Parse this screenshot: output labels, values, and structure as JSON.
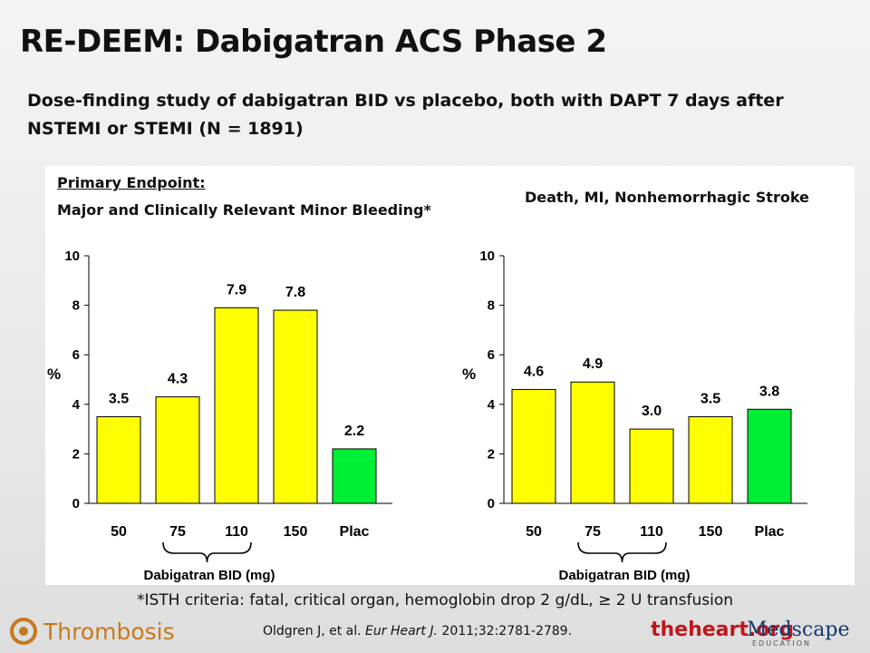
{
  "slide": {
    "title": "RE-DEEM: Dabigatran ACS Phase 2",
    "subtitle": "Dose-finding study of dabigatran BID vs placebo, both with DAPT 7 days after NSTEMI or STEMI (N = 1891)",
    "footnote": "*ISTH criteria: fatal, critical organ, hemoglobin drop 2 g/dL, ≥ 2 U transfusion",
    "citation_authors": "Oldgren J, et al.",
    "citation_journal": "Eur Heart J.",
    "citation_details": "2011;32:2781-2789.",
    "brand": "Thrombosis",
    "logo_theheart": "theheart.org",
    "logo_medscape": "Medscape",
    "logo_medscape_sub": "EDUCATION"
  },
  "panels": {
    "left_heading_line1": "Primary Endpoint:",
    "left_heading_line2": "Major and Clinically Relevant Minor Bleeding*",
    "right_heading": "Death, MI, Nonhemorrhagic Stroke"
  },
  "colors": {
    "dabigatran": "#ffff00",
    "placebo": "#00ee33",
    "bar_outline": "#000000"
  },
  "chart_data": [
    {
      "type": "bar",
      "title": "",
      "categories": [
        "50",
        "75",
        "110",
        "150",
        "Plac"
      ],
      "values": [
        3.5,
        4.3,
        7.9,
        7.8,
        2.2
      ],
      "value_labels": [
        "3.5",
        "4.3",
        "7.9",
        "7.8",
        "2.2"
      ],
      "bar_colors": [
        "#ffff00",
        "#ffff00",
        "#ffff00",
        "#ffff00",
        "#00ee33"
      ],
      "ylabel": "%",
      "xlabel": "Dabigatran  BID (mg)",
      "ylim": [
        0,
        10
      ],
      "yticks": [
        0,
        2,
        4,
        6,
        8,
        10
      ],
      "grid": false,
      "legend": "none"
    },
    {
      "type": "bar",
      "title": "",
      "categories": [
        "50",
        "75",
        "110",
        "150",
        "Plac"
      ],
      "values": [
        4.6,
        4.9,
        3.0,
        3.5,
        3.8
      ],
      "value_labels": [
        "4.6",
        "4.9",
        "3.0",
        "3.5",
        "3.8"
      ],
      "bar_colors": [
        "#ffff00",
        "#ffff00",
        "#ffff00",
        "#ffff00",
        "#00ee33"
      ],
      "ylabel": "%",
      "xlabel": "Dabigatran  BID (mg)",
      "ylim": [
        0,
        10
      ],
      "yticks": [
        0,
        2,
        4,
        6,
        8,
        10
      ],
      "grid": false,
      "legend": "none"
    }
  ]
}
